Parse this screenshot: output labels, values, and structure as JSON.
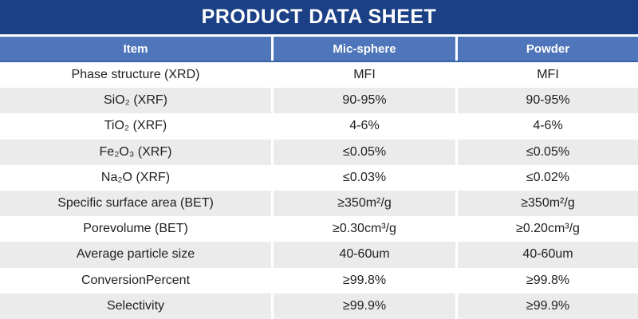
{
  "title": "PRODUCT DATA SHEET",
  "colors": {
    "title_bar": "#1c4085",
    "header_bg": "#4f75ba",
    "header_border": "#3a63a8",
    "row_alt_bg": "#ebebeb",
    "text": "#1f1f1f"
  },
  "table": {
    "columns": [
      "Item",
      "Mic-sphere",
      "Powder"
    ],
    "rows": [
      {
        "item": "Phase structure (XRD)",
        "mic_sphere": "MFI",
        "powder": "MFI"
      },
      {
        "item": "SiO₂ (XRF)",
        "mic_sphere": "90-95%",
        "powder": "90-95%"
      },
      {
        "item": "TiO₂ (XRF)",
        "mic_sphere": "4-6%",
        "powder": "4-6%"
      },
      {
        "item": "Fe₂O₃ (XRF)",
        "mic_sphere": "≤0.05%",
        "powder": "≤0.05%"
      },
      {
        "item": "Na₂O (XRF)",
        "mic_sphere": "≤0.03%",
        "powder": "≤0.02%"
      },
      {
        "item": "Specific surface area (BET)",
        "mic_sphere": "≥350m²/g",
        "powder": "≥350m²/g"
      },
      {
        "item": "Porevolume (BET)",
        "mic_sphere": "≥0.30cm³/g",
        "powder": "≥0.20cm³/g"
      },
      {
        "item": "Average particle size",
        "mic_sphere": "40-60um",
        "powder": "40-60um"
      },
      {
        "item": "ConversionPercent",
        "mic_sphere": "≥99.8%",
        "powder": "≥99.8%"
      },
      {
        "item": "Selectivity",
        "mic_sphere": "≥99.9%",
        "powder": "≥99.9%"
      }
    ]
  }
}
